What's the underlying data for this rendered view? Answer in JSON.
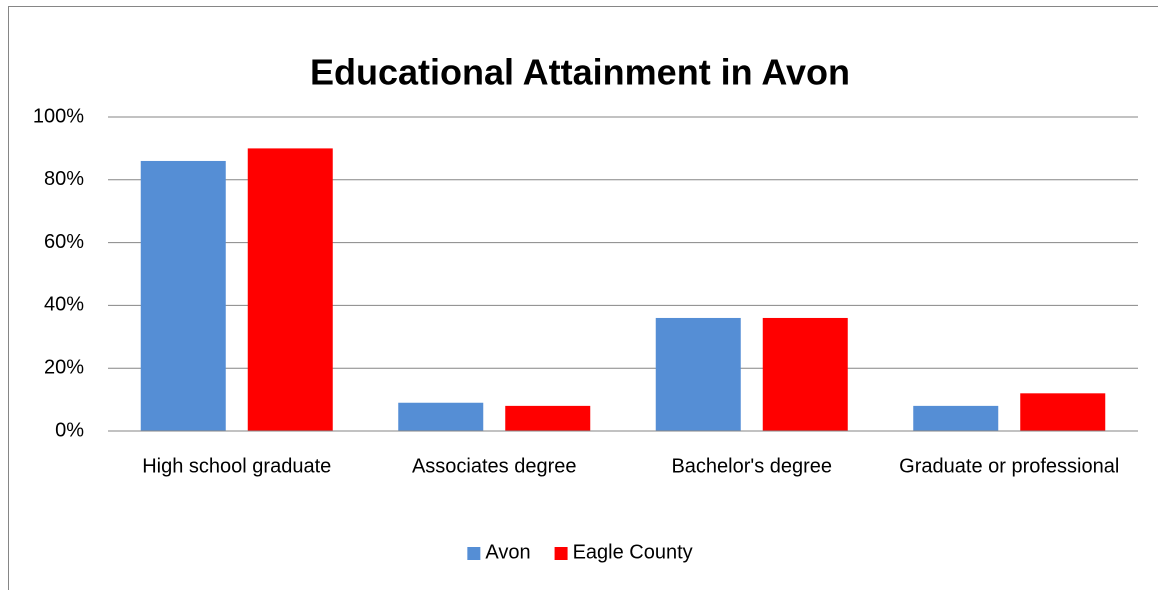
{
  "chart_data": {
    "type": "bar",
    "title": "Educational Attainment in Avon",
    "categories": [
      "High school graduate",
      "Associates degree",
      "Bachelor's degree",
      "Graduate or professional"
    ],
    "series": [
      {
        "name": "Avon",
        "color": "#558ed5",
        "values": [
          86,
          9,
          36,
          8
        ]
      },
      {
        "name": "Eagle County",
        "color": "#ff0000",
        "values": [
          90,
          8,
          36,
          12
        ]
      }
    ],
    "ylim": [
      0,
      100
    ],
    "yticks": [
      {
        "value": 0,
        "label": "0%"
      },
      {
        "value": 20,
        "label": "20%"
      },
      {
        "value": 40,
        "label": "40%"
      },
      {
        "value": 60,
        "label": "60%"
      },
      {
        "value": 80,
        "label": "80%"
      },
      {
        "value": 100,
        "label": "100%"
      }
    ],
    "grid": true,
    "legend": "bottom"
  }
}
